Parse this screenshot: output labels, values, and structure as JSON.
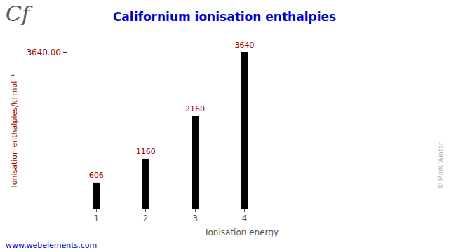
{
  "chart_data": {
    "type": "bar",
    "title": "Californium ionisation enthalpies",
    "x": [
      1,
      2,
      3,
      4
    ],
    "values": [
      606,
      1160,
      2160,
      3640
    ],
    "color": "#000000",
    "xlabel": "Ionisation energy",
    "ylabel": "Ionisation enthalpies/kJ mol⁻¹",
    "xlim": [
      0.4,
      7.5
    ],
    "xticks": [
      1,
      2,
      3,
      4
    ],
    "ylim": [
      0,
      3640
    ],
    "yticks": [
      {
        "value": 3640,
        "label": "3640.00"
      }
    ],
    "grid": false,
    "data_labels": true,
    "annotations": [
      "Cf",
      "© Mark Winter",
      "www.webelements.com"
    ]
  }
}
